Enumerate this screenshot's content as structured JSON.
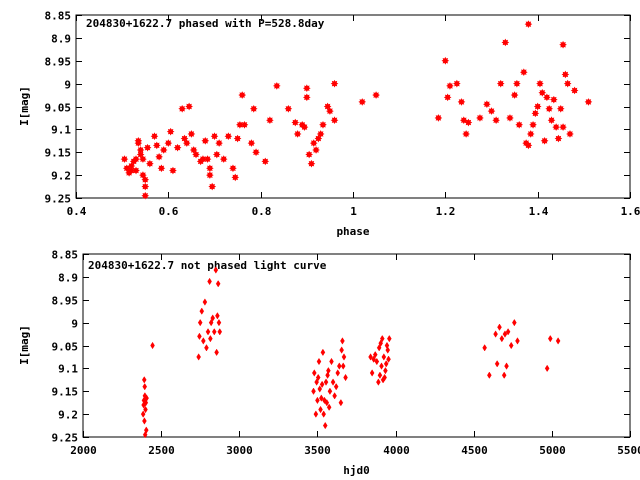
{
  "chart_data": [
    {
      "type": "scatter",
      "title": "204830+1622.7 phased with P=528.8day",
      "xlabel": "phase",
      "ylabel": "I[mag]",
      "xlim": [
        0.4,
        1.6
      ],
      "ylim": [
        8.85,
        9.25
      ],
      "y_inverted": true,
      "xticks": [
        "0.4",
        "0.6",
        "0.8",
        "1",
        "1.2",
        "1.4",
        "1.6"
      ],
      "yticks": [
        "8.85",
        "8.9",
        "8.95",
        "9",
        "9.05",
        "9.1",
        "9.15",
        "9.2",
        "9.25"
      ],
      "marker": "star",
      "color": "#ff0000",
      "grid": false,
      "points": [
        [
          0.505,
          9.165
        ],
        [
          0.51,
          9.185
        ],
        [
          0.515,
          9.195
        ],
        [
          0.52,
          9.18
        ],
        [
          0.52,
          9.19
        ],
        [
          0.525,
          9.17
        ],
        [
          0.53,
          9.165
        ],
        [
          0.53,
          9.19
        ],
        [
          0.535,
          9.125
        ],
        [
          0.535,
          9.13
        ],
        [
          0.54,
          9.145
        ],
        [
          0.54,
          9.155
        ],
        [
          0.545,
          9.165
        ],
        [
          0.545,
          9.2
        ],
        [
          0.55,
          9.21
        ],
        [
          0.55,
          9.225
        ],
        [
          0.55,
          9.245
        ],
        [
          0.555,
          9.14
        ],
        [
          0.56,
          9.175
        ],
        [
          0.57,
          9.115
        ],
        [
          0.575,
          9.135
        ],
        [
          0.58,
          9.16
        ],
        [
          0.585,
          9.185
        ],
        [
          0.59,
          9.145
        ],
        [
          0.6,
          9.13
        ],
        [
          0.605,
          9.105
        ],
        [
          0.61,
          9.19
        ],
        [
          0.62,
          9.14
        ],
        [
          0.63,
          9.055
        ],
        [
          0.635,
          9.12
        ],
        [
          0.64,
          9.13
        ],
        [
          0.645,
          9.05
        ],
        [
          0.65,
          9.11
        ],
        [
          0.655,
          9.145
        ],
        [
          0.66,
          9.155
        ],
        [
          0.67,
          9.17
        ],
        [
          0.675,
          9.165
        ],
        [
          0.68,
          9.125
        ],
        [
          0.685,
          9.165
        ],
        [
          0.69,
          9.185
        ],
        [
          0.69,
          9.2
        ],
        [
          0.695,
          9.225
        ],
        [
          0.7,
          9.115
        ],
        [
          0.705,
          9.155
        ],
        [
          0.71,
          9.13
        ],
        [
          0.72,
          9.165
        ],
        [
          0.73,
          9.115
        ],
        [
          0.74,
          9.185
        ],
        [
          0.745,
          9.205
        ],
        [
          0.75,
          9.12
        ],
        [
          0.755,
          9.09
        ],
        [
          0.76,
          9.025
        ],
        [
          0.765,
          9.09
        ],
        [
          0.78,
          9.13
        ],
        [
          0.785,
          9.055
        ],
        [
          0.79,
          9.15
        ],
        [
          0.81,
          9.17
        ],
        [
          0.82,
          9.08
        ],
        [
          0.835,
          9.005
        ],
        [
          0.86,
          9.055
        ],
        [
          0.875,
          9.085
        ],
        [
          0.88,
          9.11
        ],
        [
          0.89,
          9.09
        ],
        [
          0.895,
          9.095
        ],
        [
          0.9,
          9.01
        ],
        [
          0.9,
          9.03
        ],
        [
          0.905,
          9.155
        ],
        [
          0.91,
          9.175
        ],
        [
          0.915,
          9.13
        ],
        [
          0.92,
          9.145
        ],
        [
          0.925,
          9.12
        ],
        [
          0.93,
          9.11
        ],
        [
          0.935,
          9.09
        ],
        [
          0.945,
          9.05
        ],
        [
          0.95,
          9.06
        ],
        [
          0.96,
          9.08
        ],
        [
          0.96,
          9.0
        ],
        [
          1.02,
          9.04
        ],
        [
          1.05,
          9.025
        ],
        [
          1.185,
          9.075
        ],
        [
          1.2,
          8.95
        ],
        [
          1.205,
          9.03
        ],
        [
          1.21,
          9.005
        ],
        [
          1.225,
          9.0
        ],
        [
          1.235,
          9.04
        ],
        [
          1.24,
          9.08
        ],
        [
          1.245,
          9.11
        ],
        [
          1.25,
          9.085
        ],
        [
          1.275,
          9.075
        ],
        [
          1.29,
          9.045
        ],
        [
          1.3,
          9.06
        ],
        [
          1.31,
          9.08
        ],
        [
          1.32,
          9.0
        ],
        [
          1.33,
          8.91
        ],
        [
          1.34,
          9.075
        ],
        [
          1.35,
          9.025
        ],
        [
          1.355,
          9.0
        ],
        [
          1.36,
          9.09
        ],
        [
          1.37,
          8.975
        ],
        [
          1.375,
          9.13
        ],
        [
          1.38,
          8.87
        ],
        [
          1.38,
          9.135
        ],
        [
          1.385,
          9.11
        ],
        [
          1.39,
          9.09
        ],
        [
          1.395,
          9.065
        ],
        [
          1.4,
          9.05
        ],
        [
          1.405,
          9.0
        ],
        [
          1.41,
          9.02
        ],
        [
          1.415,
          9.125
        ],
        [
          1.42,
          9.03
        ],
        [
          1.425,
          9.055
        ],
        [
          1.43,
          9.08
        ],
        [
          1.435,
          9.035
        ],
        [
          1.44,
          9.095
        ],
        [
          1.445,
          9.12
        ],
        [
          1.45,
          9.055
        ],
        [
          1.455,
          9.095
        ],
        [
          1.46,
          8.98
        ],
        [
          1.465,
          9.0
        ],
        [
          1.47,
          9.11
        ],
        [
          1.48,
          9.015
        ],
        [
          1.51,
          9.04
        ],
        [
          1.455,
          8.915
        ]
      ]
    },
    {
      "type": "scatter",
      "title": "204830+1622.7 not phased light curve",
      "xlabel": "hjd0",
      "ylabel": "I[mag]",
      "xlim": [
        2000,
        5500
      ],
      "ylim": [
        8.85,
        9.25
      ],
      "y_inverted": true,
      "xticks": [
        "2000",
        "2500",
        "3000",
        "3500",
        "4000",
        "4500",
        "5000",
        "5500"
      ],
      "yticks": [
        "8.85",
        "8.9",
        "8.95",
        "9",
        "9.05",
        "9.1",
        "9.15",
        "9.2",
        "9.25"
      ],
      "marker": "diamond",
      "color": "#ff0000",
      "grid": false,
      "points": [
        [
          2385,
          9.2
        ],
        [
          2388,
          9.18
        ],
        [
          2390,
          9.17
        ],
        [
          2392,
          9.125
        ],
        [
          2393,
          9.215
        ],
        [
          2395,
          9.14
        ],
        [
          2396,
          9.16
        ],
        [
          2398,
          9.245
        ],
        [
          2400,
          9.19
        ],
        [
          2402,
          9.175
        ],
        [
          2405,
          9.235
        ],
        [
          2407,
          9.165
        ],
        [
          2445,
          9.05
        ],
        [
          2740,
          9.075
        ],
        [
          2745,
          9.03
        ],
        [
          2750,
          9.0
        ],
        [
          2760,
          8.975
        ],
        [
          2770,
          9.04
        ],
        [
          2780,
          8.955
        ],
        [
          2790,
          9.055
        ],
        [
          2800,
          9.02
        ],
        [
          2810,
          8.91
        ],
        [
          2815,
          9.035
        ],
        [
          2820,
          9.0
        ],
        [
          2830,
          8.99
        ],
        [
          2840,
          9.02
        ],
        [
          2850,
          8.885
        ],
        [
          2855,
          9.065
        ],
        [
          2860,
          8.985
        ],
        [
          2865,
          8.915
        ],
        [
          2870,
          9.0
        ],
        [
          2875,
          9.02
        ],
        [
          3475,
          9.15
        ],
        [
          3480,
          9.11
        ],
        [
          3490,
          9.2
        ],
        [
          3495,
          9.13
        ],
        [
          3500,
          9.17
        ],
        [
          3505,
          9.12
        ],
        [
          3510,
          9.085
        ],
        [
          3515,
          9.145
        ],
        [
          3520,
          9.19
        ],
        [
          3525,
          9.165
        ],
        [
          3530,
          9.135
        ],
        [
          3535,
          9.065
        ],
        [
          3540,
          9.2
        ],
        [
          3545,
          9.17
        ],
        [
          3550,
          9.225
        ],
        [
          3555,
          9.13
        ],
        [
          3560,
          9.175
        ],
        [
          3565,
          9.115
        ],
        [
          3570,
          9.105
        ],
        [
          3575,
          9.185
        ],
        [
          3580,
          9.15
        ],
        [
          3590,
          9.085
        ],
        [
          3600,
          9.13
        ],
        [
          3610,
          9.16
        ],
        [
          3620,
          9.14
        ],
        [
          3630,
          9.11
        ],
        [
          3640,
          9.095
        ],
        [
          3650,
          9.175
        ],
        [
          3655,
          9.06
        ],
        [
          3660,
          9.04
        ],
        [
          3665,
          9.095
        ],
        [
          3670,
          9.075
        ],
        [
          3680,
          9.12
        ],
        [
          3840,
          9.075
        ],
        [
          3850,
          9.11
        ],
        [
          3860,
          9.08
        ],
        [
          3870,
          9.07
        ],
        [
          3880,
          9.085
        ],
        [
          3890,
          9.13
        ],
        [
          3895,
          9.055
        ],
        [
          3900,
          9.115
        ],
        [
          3905,
          9.045
        ],
        [
          3910,
          9.095
        ],
        [
          3915,
          9.035
        ],
        [
          3920,
          9.125
        ],
        [
          3925,
          9.075
        ],
        [
          3930,
          9.12
        ],
        [
          3935,
          9.105
        ],
        [
          3940,
          9.09
        ],
        [
          3945,
          9.05
        ],
        [
          3950,
          9.06
        ],
        [
          3955,
          9.08
        ],
        [
          3960,
          9.035
        ],
        [
          4570,
          9.055
        ],
        [
          4600,
          9.115
        ],
        [
          4640,
          9.025
        ],
        [
          4650,
          9.09
        ],
        [
          4665,
          9.01
        ],
        [
          4680,
          9.035
        ],
        [
          4695,
          9.115
        ],
        [
          4700,
          9.025
        ],
        [
          4710,
          9.095
        ],
        [
          4720,
          9.02
        ],
        [
          4740,
          9.05
        ],
        [
          4760,
          9.0
        ],
        [
          4780,
          9.04
        ],
        [
          4970,
          9.1
        ],
        [
          4990,
          9.035
        ],
        [
          5040,
          9.04
        ]
      ]
    }
  ]
}
